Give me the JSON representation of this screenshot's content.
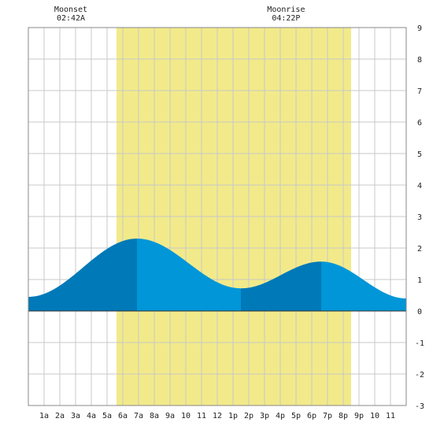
{
  "chart_data": {
    "type": "area",
    "title": "",
    "xlabel": "",
    "ylabel": "",
    "x_tick_labels": [
      "1a",
      "2a",
      "3a",
      "4a",
      "5a",
      "6a",
      "7a",
      "8a",
      "9a",
      "10",
      "11",
      "12",
      "1p",
      "2p",
      "3p",
      "4p",
      "5p",
      "6p",
      "7p",
      "8p",
      "9p",
      "10",
      "11"
    ],
    "ylim": [
      -3,
      9
    ],
    "y_ticks": [
      -3,
      -2,
      -1,
      0,
      1,
      2,
      3,
      4,
      5,
      6,
      7,
      8,
      9
    ],
    "xlim_hours": [
      0,
      24
    ],
    "grid": true,
    "daylight_hours": [
      5.6,
      20.5
    ],
    "tide_extremes": [
      {
        "hour": 0.0,
        "value": 0.45
      },
      {
        "hour": 6.9,
        "value": 2.3
      },
      {
        "hour": 13.5,
        "value": 0.72
      },
      {
        "hour": 18.6,
        "value": 1.57
      },
      {
        "hour": 24.0,
        "value": 0.4
      }
    ],
    "colors": {
      "daylight": "#f2ea8a",
      "grid": "#c8c8c8",
      "frame": "#888888",
      "tide_rising": "#0079b8",
      "tide_falling": "#0096d8"
    }
  },
  "moon_events": [
    {
      "name": "Moonset",
      "time": "02:42A",
      "hour": 2.7
    },
    {
      "name": "Moonrise",
      "time": "04:22P",
      "hour": 16.37
    }
  ]
}
